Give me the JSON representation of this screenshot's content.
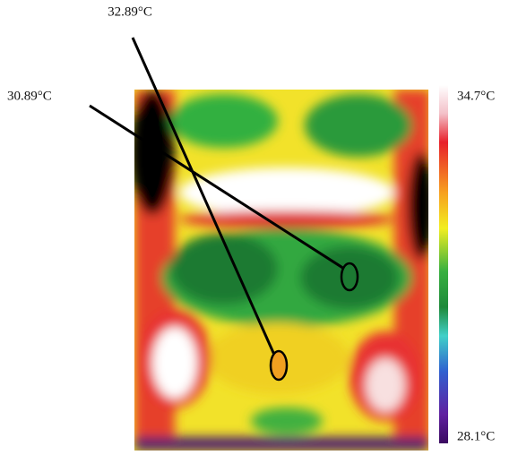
{
  "annotations": [
    {
      "label": "32.89°C"
    },
    {
      "label": "30.89°C"
    }
  ],
  "scale": {
    "max": "34.7°C",
    "min": "28.1°C"
  }
}
